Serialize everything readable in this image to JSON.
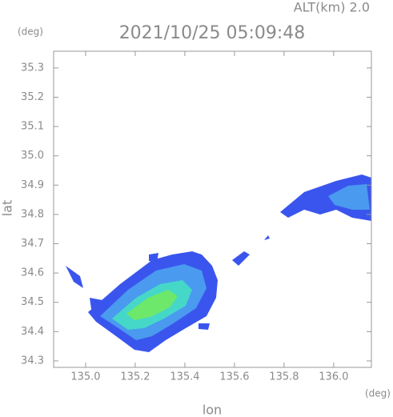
{
  "chart_data": {
    "type": "radar-map",
    "title": "2021/10/25 05:09:48",
    "subtitle": "ALT(km) 2.0",
    "x_label": "lon",
    "y_label": "lat",
    "x_unit": "(deg)",
    "y_unit": "(deg)",
    "xlim": [
      134.871,
      136.152
    ],
    "ylim": [
      34.278,
      35.357
    ],
    "xticks": [
      {
        "value": 135,
        "label": "135.0"
      },
      135.2,
      135.4,
      135.6,
      135.8,
      {
        "value": 136,
        "label": "136.0"
      }
    ],
    "yticks": [
      34.3,
      34.4,
      34.5,
      34.6,
      34.7,
      34.8,
      34.9,
      {
        "value": 35,
        "label": "35.0"
      },
      35.1,
      35.2,
      35.3
    ],
    "color": "#999999"
  }
}
